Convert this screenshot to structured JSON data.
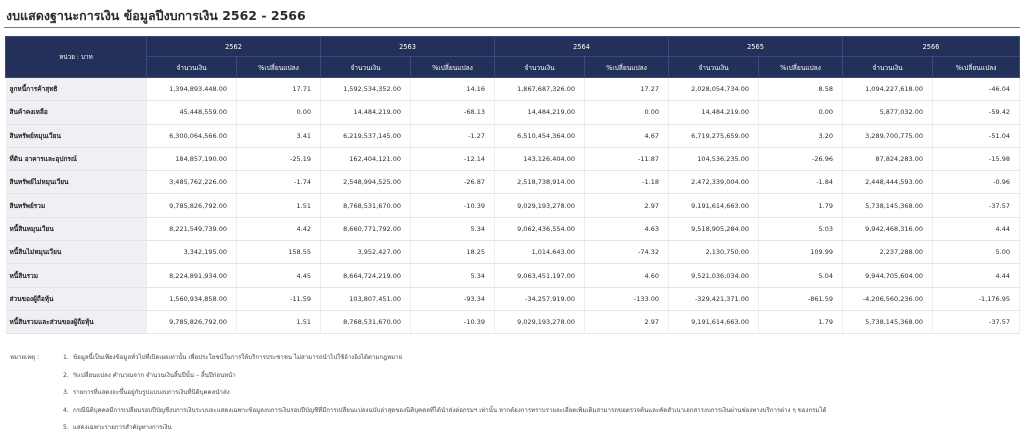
{
  "page_title": "งบแสดงฐานะการเงิน ข้อมูลปีงบการเงิน 2562 - 2566",
  "table": {
    "unit_label": "หน่วย : บาท",
    "years": [
      "2562",
      "2563",
      "2564",
      "2565",
      "2566"
    ],
    "sub_headers": {
      "amount": "จำนวนเงิน",
      "change": "%เปลี่ยนแปลง"
    },
    "rows": [
      {
        "label": "ลูกหนี้การค้าสุทธิ",
        "cells": [
          "1,394,893,448.00",
          "17.71",
          "1,592,534,352.00",
          "14.16",
          "1,867,687,326.00",
          "17.27",
          "2,028,054,734.00",
          "8.58",
          "1,094,227,618.00",
          "-46.04"
        ]
      },
      {
        "label": "สินค้าคงเหลือ",
        "cells": [
          "45,448,559.00",
          "0.00",
          "14,484,219.00",
          "-68.13",
          "14,484,219.00",
          "0.00",
          "14,484,219.00",
          "0.00",
          "5,877,032.00",
          "-59.42"
        ]
      },
      {
        "label": "สินทรัพย์หมุนเวียน",
        "cells": [
          "6,300,064,566.00",
          "3.41",
          "6,219,537,145.00",
          "-1.27",
          "6,510,454,364.00",
          "4.67",
          "6,719,275,659.00",
          "3.20",
          "3,289,700,775.00",
          "-51.04"
        ]
      },
      {
        "label": "ที่ดิน อาคารและอุปกรณ์",
        "cells": [
          "184,857,190.00",
          "-25.19",
          "162,404,121.00",
          "-12.14",
          "143,126,404.00",
          "-11.87",
          "104,536,235.00",
          "-26.96",
          "87,824,283.00",
          "-15.98"
        ]
      },
      {
        "label": "สินทรัพย์ไม่หมุนเวียน",
        "cells": [
          "3,485,762,226.00",
          "-1.74",
          "2,548,994,525.00",
          "-26.87",
          "2,518,738,914.00",
          "-1.18",
          "2,472,339,004.00",
          "-1.84",
          "2,448,444,593.00",
          "-0.96"
        ]
      },
      {
        "label": "สินทรัพย์รวม",
        "cells": [
          "9,785,826,792.00",
          "1.51",
          "8,768,531,670.00",
          "-10.39",
          "9,029,193,278.00",
          "2.97",
          "9,191,614,663.00",
          "1.79",
          "5,738,145,368.00",
          "-37.57"
        ]
      },
      {
        "label": "หนี้สินหมุนเวียน",
        "cells": [
          "8,221,549,739.00",
          "4.42",
          "8,660,771,792.00",
          "5.34",
          "9,062,436,554.00",
          "4.63",
          "9,518,905,284.00",
          "5.03",
          "9,942,468,316.00",
          "4.44"
        ]
      },
      {
        "label": "หนี้สินไม่หมุนเวียน",
        "cells": [
          "3,342,195.00",
          "158.55",
          "3,952,427.00",
          "18.25",
          "1,014,643.00",
          "-74.32",
          "2,130,750.00",
          "109.99",
          "2,237,288.00",
          "5.00"
        ]
      },
      {
        "label": "หนี้สินรวม",
        "cells": [
          "8,224,891,934.00",
          "4.45",
          "8,664,724,219.00",
          "5.34",
          "9,063,451,197.00",
          "4.60",
          "9,521,036,034.00",
          "5.04",
          "9,944,705,604.00",
          "4.44"
        ]
      },
      {
        "label": "ส่วนของผู้ถือหุ้น",
        "cells": [
          "1,560,934,858.00",
          "-11.59",
          "103,807,451.00",
          "-93.34",
          "-34,257,919.00",
          "-133.00",
          "-329,421,371.00",
          "-861.59",
          "-4,206,560,236.00",
          "-1,176.95"
        ]
      },
      {
        "label": "หนี้สินรวมและส่วนของผู้ถือหุ้น",
        "cells": [
          "9,785,826,792.00",
          "1.51",
          "8,768,531,670.00",
          "-10.39",
          "9,029,193,278.00",
          "2.97",
          "9,191,614,663.00",
          "1.79",
          "5,738,145,368.00",
          "-37.57"
        ]
      }
    ]
  },
  "notes": {
    "heading": "หมายเหตุ :",
    "items": [
      {
        "num": "1.",
        "text": "ข้อมูลนี้เป็นเพียงข้อมูลทั่วไปที่เปิดเผยเท่านั้น เพื่อประโยชน์ในการให้บริการประชาชน ไม่สามารถนำไปใช้อ้างอิงได้ตามกฎหมาย"
      },
      {
        "num": "2.",
        "text": "%เปลี่ยนแปลง คำนวณจาก จำนวนเงินสิ้นปีนั้น – สิ้นปีก่อนหน้า"
      },
      {
        "num": "3.",
        "text": "รายการที่แสดงจะขึ้นอยู่กับรูปแบบงบการเงินที่นิติบุคคลนำส่ง"
      },
      {
        "num": "4.",
        "text": "กรณีนิติบุคคลมีการเปลี่ยนรอบปีบัญชีงบการเงินระบบจะแสดงเฉพาะข้อมูลงบการเงินรอบปีบัญชีที่มีการเปลี่ยนแปลงฉบับล่าสุดของนิติบุคคลที่ได้นำส่งต่อกรมฯ เท่านั้น หากต้องการทราบรายละเอียดเพิ่มเติมสามารถขอตรวจค้นและคัดสำเนาเอกสารงบการเงินผ่านช่องทางบริการต่าง ๆ ของกรมได้"
      },
      {
        "num": "5.",
        "text": "แสดงเฉพาะรายการสำคัญทางการเงิน"
      }
    ]
  },
  "colors": {
    "header_bg": "#22305a",
    "label_bg": "#eef0f4",
    "rule": "#6b7aa3"
  }
}
